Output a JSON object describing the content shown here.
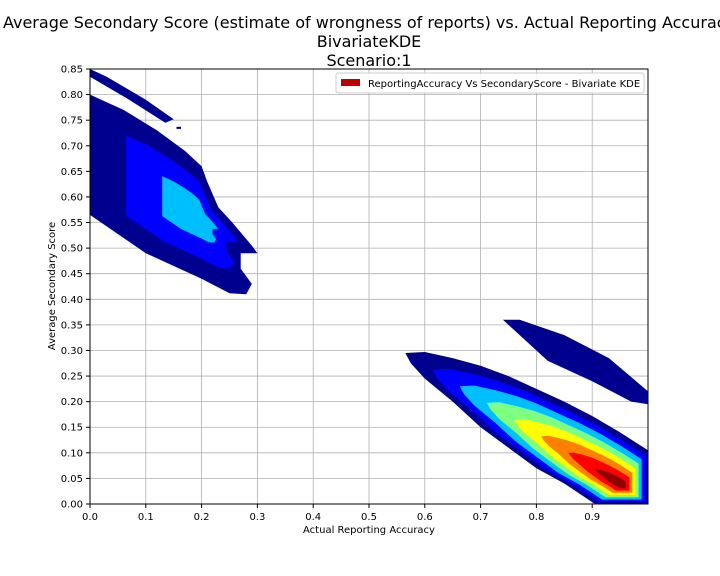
{
  "chart_data": {
    "type": "heatmap",
    "title_lines": [
      "Average Secondary Score (estimate of wrongness of reports) vs. Actual Reporting Accuracy",
      "BivariateKDE",
      "Scenario:1"
    ],
    "xlabel": "Actual Reporting Accuracy",
    "ylabel": "Average Secondary Score",
    "xlim": [
      0.0,
      1.0
    ],
    "ylim": [
      0.0,
      0.85
    ],
    "x_ticks": [
      "0.0",
      "0.1",
      "0.2",
      "0.3",
      "0.4",
      "0.5",
      "0.6",
      "0.7",
      "0.8",
      "0.9"
    ],
    "y_ticks": [
      "0.00",
      "0.05",
      "0.10",
      "0.15",
      "0.20",
      "0.25",
      "0.30",
      "0.35",
      "0.40",
      "0.45",
      "0.50",
      "0.55",
      "0.60",
      "0.65",
      "0.70",
      "0.75",
      "0.80",
      "0.85"
    ],
    "grid": true,
    "legend": {
      "placement": "upper-right",
      "entries": [
        {
          "label": "ReportingAccuracy Vs SecondaryScore - Bivariate KDE",
          "color": "#c00000"
        }
      ]
    },
    "colormap": [
      "#00008f",
      "#0000ff",
      "#00bfff",
      "#7fff7f",
      "#ffff00",
      "#ff8000",
      "#ff0000",
      "#8f0000"
    ],
    "density_regions": [
      {
        "name": "upper-left-main-blob",
        "peak_density": 0.25,
        "outline": [
          [
            0.0,
            0.8
          ],
          [
            0.06,
            0.77
          ],
          [
            0.12,
            0.73
          ],
          [
            0.17,
            0.69
          ],
          [
            0.2,
            0.66
          ],
          [
            0.21,
            0.63
          ],
          [
            0.23,
            0.58
          ],
          [
            0.255,
            0.55
          ],
          [
            0.29,
            0.505
          ],
          [
            0.3,
            0.49
          ],
          [
            0.27,
            0.49
          ],
          [
            0.27,
            0.46
          ],
          [
            0.29,
            0.43
          ],
          [
            0.28,
            0.41
          ],
          [
            0.25,
            0.412
          ],
          [
            0.2,
            0.44
          ],
          [
            0.1,
            0.49
          ],
          [
            0.0,
            0.565
          ]
        ]
      },
      {
        "name": "upper-left-small-strip",
        "peak_density": 0.05,
        "outline": [
          [
            0.0,
            0.85
          ],
          [
            0.03,
            0.835
          ],
          [
            0.1,
            0.79
          ],
          [
            0.15,
            0.752
          ],
          [
            0.135,
            0.745
          ],
          [
            0.07,
            0.79
          ],
          [
            0.0,
            0.835
          ]
        ]
      },
      {
        "name": "upper-left-speck",
        "peak_density": 0.05,
        "outline": [
          [
            0.155,
            0.737
          ],
          [
            0.163,
            0.737
          ],
          [
            0.163,
            0.733
          ],
          [
            0.155,
            0.733
          ]
        ]
      },
      {
        "name": "lower-right-upper-band",
        "peak_density": 0.05,
        "outline": [
          [
            0.74,
            0.36
          ],
          [
            0.77,
            0.36
          ],
          [
            0.85,
            0.33
          ],
          [
            0.93,
            0.285
          ],
          [
            1.0,
            0.22
          ],
          [
            1.0,
            0.195
          ],
          [
            0.97,
            0.2
          ],
          [
            0.9,
            0.24
          ],
          [
            0.82,
            0.28
          ],
          [
            0.75,
            0.35
          ]
        ]
      },
      {
        "name": "lower-right-main-band",
        "peak_density": 1.0,
        "outline": [
          [
            0.565,
            0.295
          ],
          [
            0.6,
            0.297
          ],
          [
            0.65,
            0.285
          ],
          [
            0.7,
            0.27
          ],
          [
            0.75,
            0.25
          ],
          [
            0.8,
            0.225
          ],
          [
            0.85,
            0.2
          ],
          [
            0.9,
            0.172
          ],
          [
            0.95,
            0.14
          ],
          [
            1.0,
            0.105
          ],
          [
            1.0,
            0.0
          ],
          [
            0.905,
            0.0
          ],
          [
            0.85,
            0.04
          ],
          [
            0.8,
            0.07
          ],
          [
            0.75,
            0.11
          ],
          [
            0.7,
            0.15
          ],
          [
            0.65,
            0.2
          ],
          [
            0.6,
            0.245
          ],
          [
            0.575,
            0.275
          ]
        ]
      }
    ]
  }
}
